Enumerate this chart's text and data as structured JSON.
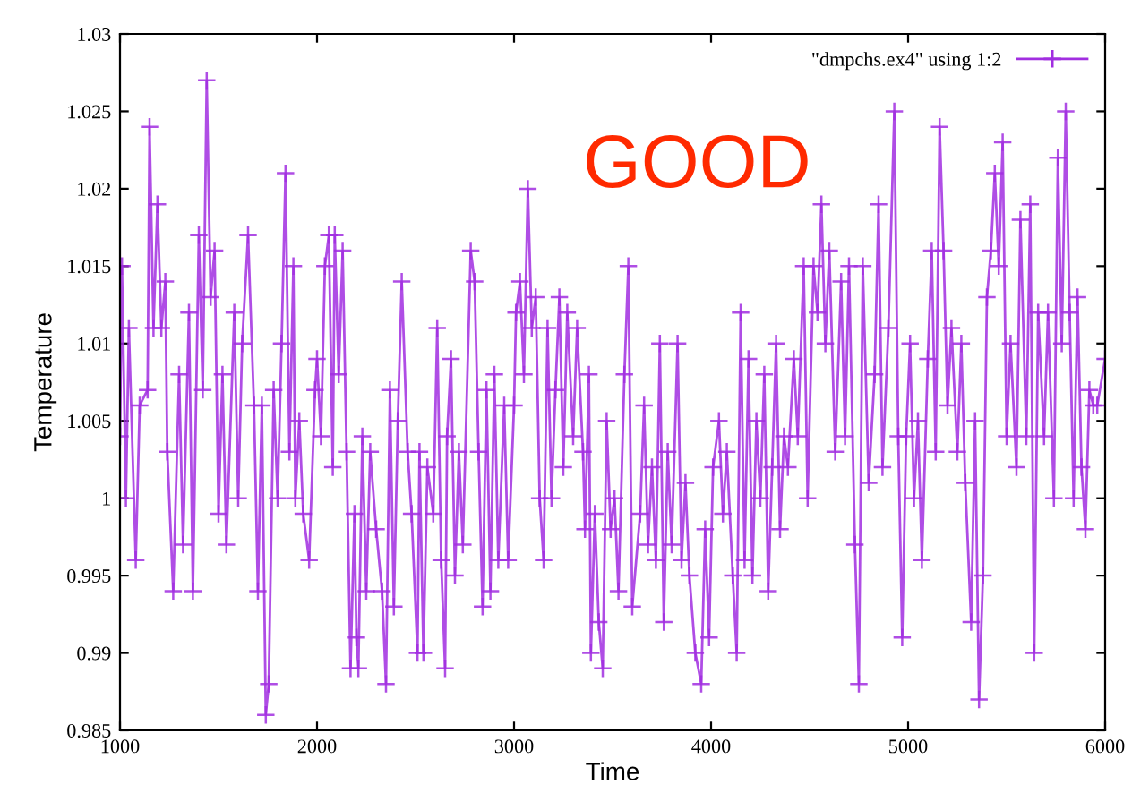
{
  "chart_data": {
    "type": "line",
    "xlabel": "Time",
    "ylabel": "Temperature",
    "annotations": [
      "GOOD"
    ],
    "xlim": [
      1000,
      6000
    ],
    "xticks": [
      1000,
      2000,
      3000,
      4000,
      5000,
      6000
    ],
    "ylim": [
      0.985,
      1.03
    ],
    "yticks": [
      0.985,
      0.99,
      0.995,
      1,
      1.005,
      1.01,
      1.015,
      1.02,
      1.025,
      1.03
    ],
    "grid": false,
    "legend": "top right",
    "marker": "cross",
    "line_style": "solid",
    "series": [
      {
        "name": "\"dmpchs.ex4\" using 1:2",
        "color": "#a12ee0",
        "x": [
          1000,
          1010,
          1030,
          1045,
          1080,
          1100,
          1140,
          1150,
          1170,
          1190,
          1210,
          1230,
          1240,
          1270,
          1300,
          1320,
          1350,
          1370,
          1400,
          1420,
          1440,
          1460,
          1480,
          1500,
          1520,
          1540,
          1580,
          1600,
          1620,
          1650,
          1680,
          1700,
          1720,
          1740,
          1755,
          1780,
          1800,
          1820,
          1840,
          1860,
          1880,
          1890,
          1910,
          1930,
          1960,
          1990,
          2000,
          2020,
          2040,
          2060,
          2080,
          2090,
          2110,
          2130,
          2150,
          2170,
          2190,
          2200,
          2210,
          2230,
          2250,
          2270,
          2300,
          2330,
          2350,
          2370,
          2390,
          2410,
          2430,
          2460,
          2480,
          2510,
          2520,
          2540,
          2560,
          2590,
          2610,
          2630,
          2650,
          2660,
          2680,
          2700,
          2720,
          2740,
          2780,
          2800,
          2820,
          2840,
          2860,
          2880,
          2900,
          2920,
          2950,
          2970,
          3000,
          3010,
          3030,
          3050,
          3070,
          3090,
          3110,
          3130,
          3150,
          3170,
          3190,
          3210,
          3230,
          3250,
          3270,
          3300,
          3320,
          3350,
          3360,
          3380,
          3390,
          3410,
          3430,
          3450,
          3470,
          3490,
          3510,
          3530,
          3560,
          3580,
          3600,
          3640,
          3660,
          3680,
          3700,
          3720,
          3740,
          3760,
          3780,
          3800,
          3830,
          3850,
          3870,
          3890,
          3920,
          3950,
          3970,
          3990,
          4010,
          4040,
          4060,
          4080,
          4110,
          4130,
          4150,
          4170,
          4190,
          4210,
          4230,
          4250,
          4270,
          4290,
          4310,
          4330,
          4350,
          4370,
          4390,
          4420,
          4440,
          4470,
          4490,
          4520,
          4540,
          4560,
          4580,
          4600,
          4630,
          4660,
          4680,
          4700,
          4730,
          4750,
          4770,
          4800,
          4830,
          4850,
          4870,
          4900,
          4930,
          4950,
          4970,
          4990,
          5010,
          5030,
          5050,
          5070,
          5100,
          5120,
          5140,
          5160,
          5180,
          5200,
          5220,
          5250,
          5270,
          5290,
          5320,
          5340,
          5360,
          5380,
          5400,
          5420,
          5440,
          5460,
          5480,
          5500,
          5520,
          5550,
          5570,
          5600,
          5620,
          5640,
          5660,
          5690,
          5710,
          5740,
          5760,
          5780,
          5800,
          5820,
          5840,
          5860,
          5880,
          5900,
          5920,
          5940,
          5960,
          6000
        ],
        "values": [
          1.004,
          1.015,
          1.0,
          1.011,
          0.996,
          1.006,
          1.007,
          1.024,
          1.011,
          1.019,
          1.011,
          1.014,
          1.003,
          0.994,
          1.008,
          0.997,
          1.012,
          0.994,
          1.017,
          1.007,
          1.027,
          1.013,
          1.016,
          0.999,
          1.008,
          0.997,
          1.012,
          1.0,
          1.01,
          1.017,
          1.006,
          0.994,
          1.006,
          0.986,
          0.988,
          1.007,
          1.0,
          1.01,
          1.021,
          1.003,
          1.015,
          1.0,
          1.005,
          0.999,
          0.996,
          1.007,
          1.009,
          1.004,
          1.015,
          1.017,
          1.002,
          1.017,
          1.008,
          1.016,
          1.003,
          0.989,
          0.999,
          0.991,
          0.989,
          1.004,
          0.994,
          1.003,
          0.998,
          0.994,
          0.988,
          1.007,
          0.993,
          1.005,
          1.014,
          1.003,
          0.999,
          0.99,
          1.003,
          0.99,
          1.002,
          0.999,
          1.011,
          0.996,
          0.989,
          1.004,
          1.009,
          0.995,
          1.003,
          0.997,
          1.016,
          1.014,
          1.003,
          0.993,
          1.007,
          0.994,
          1.008,
          0.996,
          1.006,
          0.996,
          1.006,
          1.012,
          1.014,
          1.008,
          1.02,
          1.011,
          1.013,
          1.0,
          0.996,
          1.011,
          1.0,
          1.007,
          1.013,
          1.002,
          1.012,
          1.004,
          1.011,
          1.003,
          0.998,
          1.008,
          0.99,
          0.999,
          0.992,
          0.989,
          1.005,
          0.998,
          1.0,
          0.994,
          1.008,
          1.015,
          0.993,
          0.999,
          1.006,
          0.997,
          1.002,
          0.996,
          1.01,
          0.992,
          1.003,
          0.997,
          1.01,
          0.996,
          1.001,
          0.995,
          0.99,
          0.988,
          0.998,
          0.991,
          1.002,
          1.005,
          0.999,
          1.003,
          0.995,
          0.99,
          1.012,
          0.996,
          1.009,
          0.995,
          1.005,
          1.0,
          1.008,
          0.994,
          1.002,
          1.01,
          0.998,
          1.004,
          1.002,
          1.009,
          1.004,
          1.015,
          1.0,
          1.015,
          1.012,
          1.019,
          1.01,
          1.016,
          1.003,
          1.014,
          1.004,
          1.015,
          0.997,
          0.988,
          1.015,
          1.001,
          1.008,
          1.019,
          1.002,
          1.011,
          1.025,
          1.004,
          0.991,
          1.004,
          1.01,
          1.0,
          1.005,
          0.996,
          1.009,
          1.016,
          1.003,
          1.024,
          1.016,
          1.006,
          1.011,
          1.003,
          1.01,
          1.001,
          0.992,
          1.005,
          0.987,
          0.995,
          1.013,
          1.016,
          1.021,
          1.015,
          1.023,
          1.004,
          1.01,
          1.002,
          1.018,
          1.004,
          1.019,
          0.99,
          1.012,
          1.004,
          1.012,
          1.0,
          1.022,
          1.01,
          1.025,
          1.012,
          1.0,
          1.013,
          1.002,
          0.998,
          1.007,
          1.006,
          1.006,
          1.009
        ]
      }
    ]
  }
}
